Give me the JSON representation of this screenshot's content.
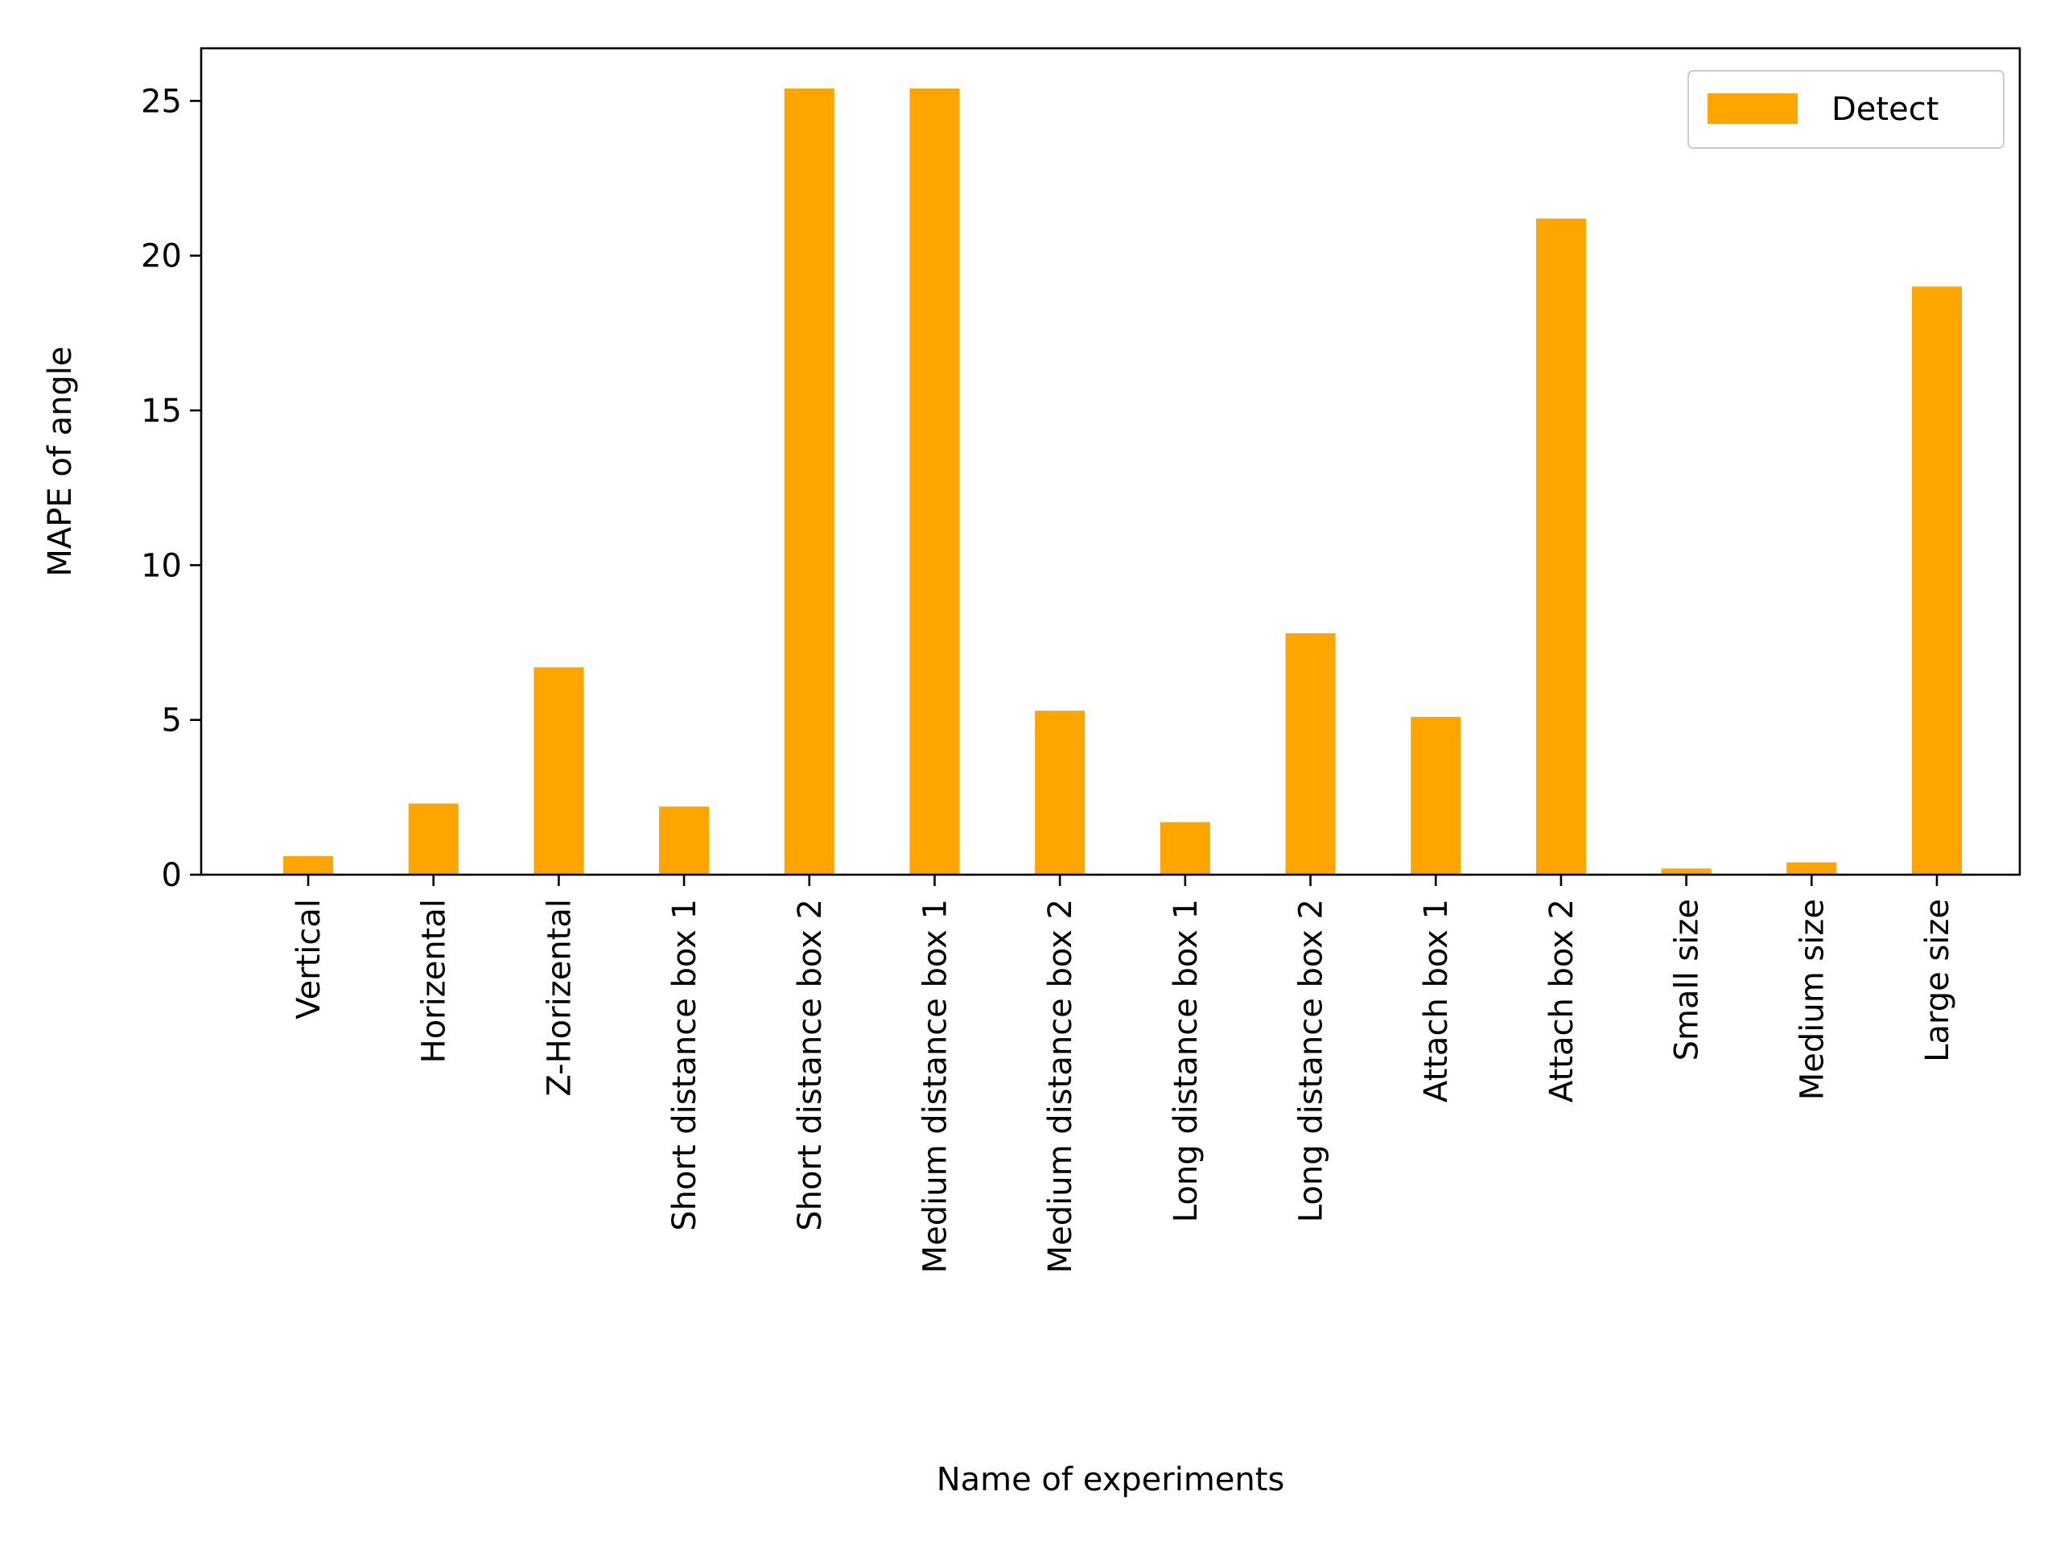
{
  "chart_data": {
    "type": "bar",
    "title": "",
    "xlabel": "Name of experiments",
    "ylabel": "MAPE of angle",
    "categories": [
      "Vertical",
      "Horizental",
      "Z-Horizental",
      "Short distance box 1",
      "Short distance box 2",
      "Medium distance box 1",
      "Medium distance box 2",
      "Long distance box 1",
      "Long distance box 2",
      "Attach box 1",
      "Attach box 2",
      "Small size",
      "Medium size",
      "Large size"
    ],
    "series": [
      {
        "name": "Detect",
        "color": "#ffa500",
        "values": [
          0.6,
          2.3,
          6.7,
          2.2,
          25.4,
          25.4,
          5.3,
          1.7,
          7.8,
          5.1,
          21.2,
          0.2,
          0.4,
          19.0
        ]
      }
    ],
    "ylim": [
      0,
      26.7
    ],
    "yticks": [
      0,
      5,
      10,
      15,
      20,
      25
    ],
    "grid": false,
    "legend_position": "top-right"
  }
}
